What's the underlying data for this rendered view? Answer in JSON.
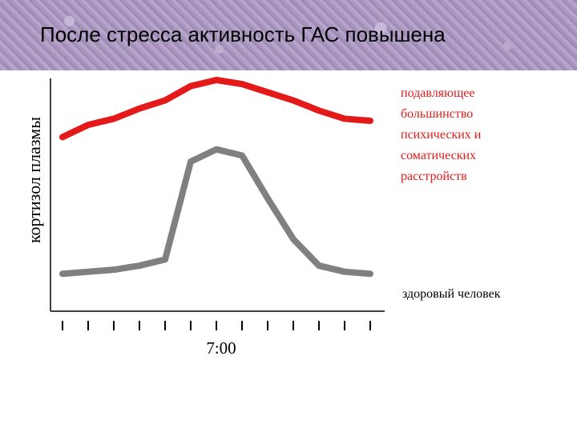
{
  "title": "После стресса активность ГАС повышена",
  "chart_data": {
    "type": "line",
    "ylabel": "кортизол плазмы",
    "xlabel": "",
    "x_ticks_count": 13,
    "x_tick_labels": [
      {
        "index": 6,
        "label": "7:00"
      }
    ],
    "x": [
      0,
      1,
      2,
      3,
      4,
      5,
      6,
      7,
      8,
      9,
      10,
      11,
      12
    ],
    "ylim": [
      0,
      100
    ],
    "grid": false,
    "series": [
      {
        "name_lines": [
          "подавляющее",
          "большинство",
          "психических и",
          "соматических",
          "расстройств"
        ],
        "color": "#e41a1a",
        "values": [
          72,
          78,
          81,
          86,
          90,
          97,
          100,
          98,
          94,
          90,
          85,
          81,
          80
        ]
      },
      {
        "name_lines": [
          "здоровый человек"
        ],
        "color": "#808080",
        "values": [
          5,
          6,
          7,
          9,
          12,
          60,
          66,
          63,
          42,
          22,
          9,
          6,
          5
        ]
      }
    ]
  }
}
